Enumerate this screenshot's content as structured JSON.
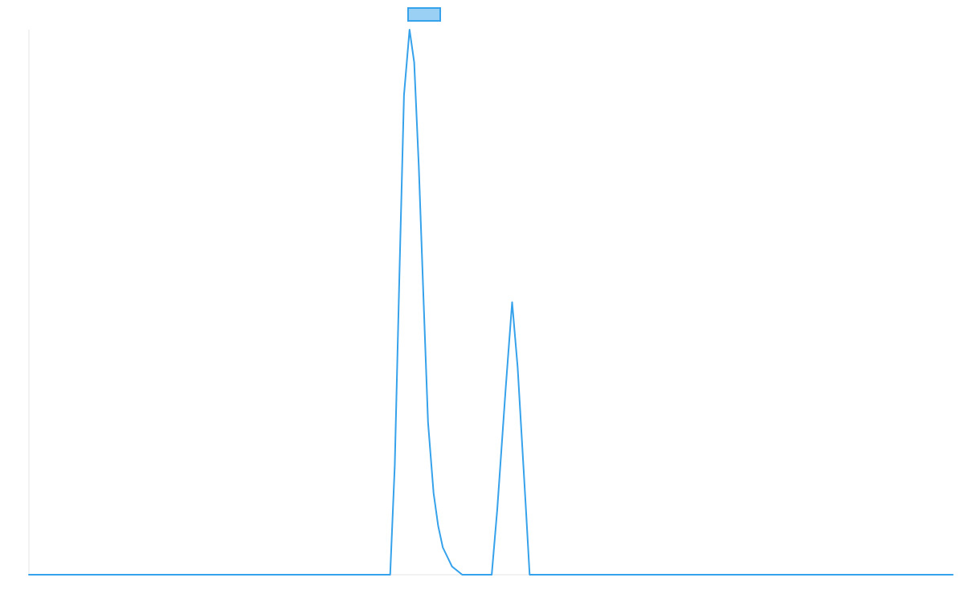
{
  "chart_data": {
    "type": "line",
    "title": "",
    "xlabel": "",
    "ylabel": "",
    "xlim": [
      0,
      100
    ],
    "ylim": [
      0,
      100
    ],
    "grid": false,
    "legend": {
      "placement": "top-center",
      "entries": [
        {
          "name": "",
          "color": "#9bd0f5",
          "border": "#36a2eb"
        }
      ]
    },
    "series": [
      {
        "color": "#36a2eb",
        "x": [
          0,
          39.1,
          39.6,
          40.1,
          40.6,
          41.2,
          41.7,
          42.2,
          42.7,
          43.2,
          43.8,
          44.3,
          44.8,
          45.8,
          46.9,
          48.3,
          48.9,
          50.1,
          50.7,
          51.6,
          52.3,
          52.9,
          53.8,
          54.2,
          54.9,
          55.5,
          56.1,
          57.3,
          100
        ],
        "y": [
          0,
          0,
          20,
          55,
          88,
          100,
          94,
          75,
          51,
          28,
          15,
          9,
          5,
          1.5,
          0,
          0,
          0,
          0,
          12,
          34,
          50,
          38,
          12,
          0,
          0,
          0,
          0,
          0,
          0
        ]
      }
    ]
  }
}
